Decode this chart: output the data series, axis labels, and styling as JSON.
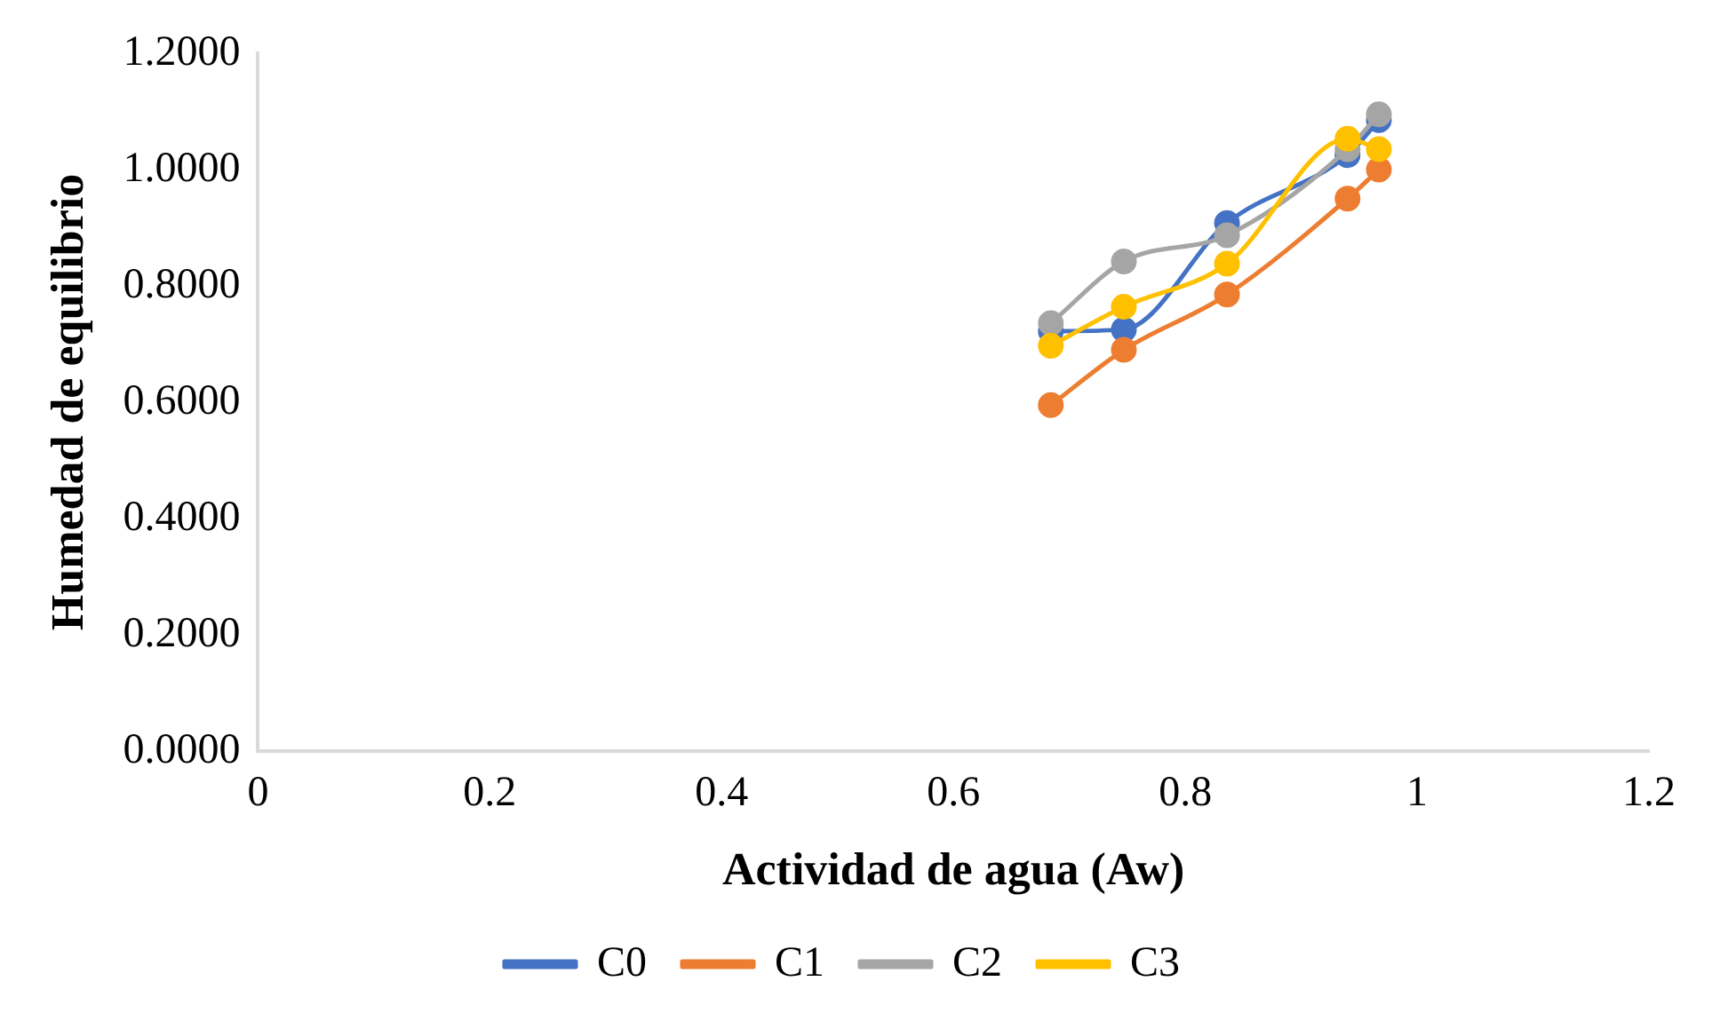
{
  "chart_data": {
    "type": "line",
    "xlabel": "Actividad de agua (Aw)",
    "ylabel": "Humedad de equilibrio",
    "x": [
      0.684,
      0.747,
      0.836,
      0.94,
      0.967
    ],
    "series": [
      {
        "name": "C0",
        "color": "#4472c4",
        "values": [
          0.722,
          0.725,
          0.908,
          1.025,
          1.085
        ]
      },
      {
        "name": "C1",
        "color": "#ed7d31",
        "values": [
          0.595,
          0.69,
          0.785,
          0.95,
          1.0
        ]
      },
      {
        "name": "C2",
        "color": "#a5a5a5",
        "values": [
          0.736,
          0.842,
          0.887,
          1.035,
          1.095
        ]
      },
      {
        "name": "C3",
        "color": "#ffc000",
        "values": [
          0.697,
          0.764,
          0.838,
          1.053,
          1.035
        ]
      }
    ],
    "xlim": [
      0,
      1.2
    ],
    "xticks": [
      0,
      0.2,
      0.4,
      0.6,
      0.8,
      1,
      1.2
    ],
    "ylim": [
      0,
      1.2
    ],
    "yticks": [
      {
        "value": 0,
        "label": "0.0000"
      },
      {
        "value": 0.2,
        "label": "0.2000"
      },
      {
        "value": 0.4,
        "label": "0.4000"
      },
      {
        "value": 0.6,
        "label": "0.6000"
      },
      {
        "value": 0.8,
        "label": "0.8000"
      },
      {
        "value": 1,
        "label": "1.0000"
      },
      {
        "value": 1.2,
        "label": "1.2000"
      }
    ],
    "grid": false,
    "legend": "bottom",
    "marker": "circle",
    "line_style": "solid"
  }
}
